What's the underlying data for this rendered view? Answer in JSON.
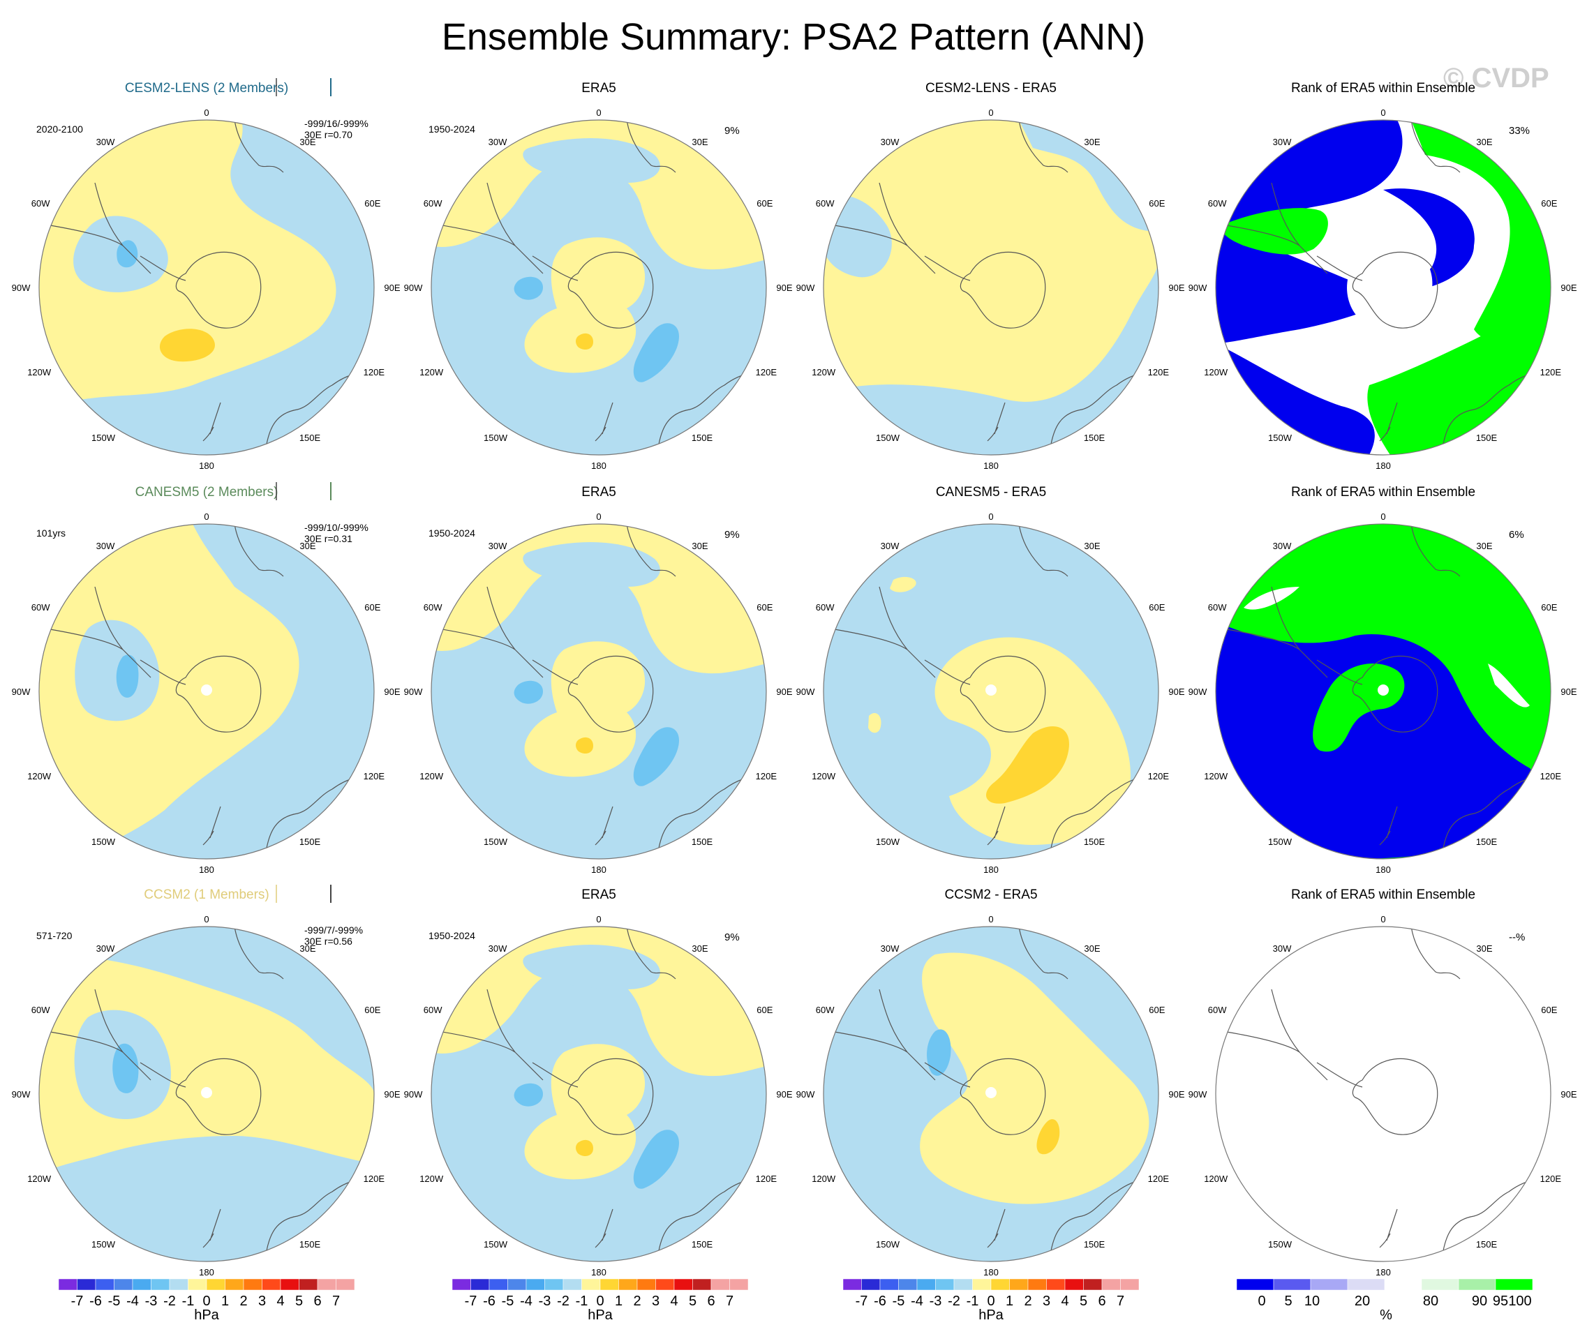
{
  "title": "Ensemble Summary: PSA2 Pattern (ANN)",
  "watermark": "© CVDP",
  "colors": {
    "neg7": "#7b2be0",
    "neg6": "#2a2ad6",
    "neg5": "#3c5ff0",
    "neg4": "#4d86ea",
    "neg3": "#4aaaf0",
    "neg2": "#6fc5f2",
    "neg1": "#b3ddf1",
    "pos1": "#fff59a",
    "pos2": "#ffd633",
    "pos3": "#ffa71a",
    "pos4": "#ff7a10",
    "pos5": "#ff4a1a",
    "pos6": "#e81010",
    "pos7": "#c02020",
    "pos8": "#f4a3a3",
    "rank_blue": "#0000ee",
    "rank_green": "#00ff00",
    "model1": "#1f6a8a",
    "model2": "#5a8a5a",
    "model3": "#e0cc7a"
  },
  "lon_labels": {
    "top": "0",
    "bottom": "180",
    "left": "90W",
    "right": "90E",
    "tl30": "30W",
    "tl60": "60W",
    "tr30": "30E",
    "tr60": "60E",
    "bl120": "120W",
    "bl150": "150W",
    "br120": "120E",
    "br150": "150E"
  },
  "rows": [
    {
      "model": {
        "title": "CESM2-LENS (2 Members)",
        "title_color": "model1",
        "period": "2020-2100",
        "stats": "-999/16/-999%",
        "corr": "30E r=0.70",
        "bar_color": "model1"
      },
      "obs": {
        "title": "ERA5",
        "period": "1950-2024",
        "pct": "9%"
      },
      "diff": {
        "title": "CESM2-LENS - ERA5"
      },
      "rank": {
        "title": "Rank of ERA5 within Ensemble",
        "pct": "33%"
      }
    },
    {
      "model": {
        "title": "CANESM5 (2 Members)",
        "title_color": "model2",
        "period": "101yrs",
        "stats": "-999/10/-999%",
        "corr": "30E r=0.31",
        "bar_color": "model2"
      },
      "obs": {
        "title": "ERA5",
        "period": "1950-2024",
        "pct": "9%"
      },
      "diff": {
        "title": "CANESM5 - ERA5"
      },
      "rank": {
        "title": "Rank of ERA5 within Ensemble",
        "pct": "6%"
      }
    },
    {
      "model": {
        "title": "CCSM2 (1 Members)",
        "title_color": "model3",
        "period": "571-720",
        "stats": "-999/7/-999%",
        "corr": "30E r=0.56",
        "bar_color": "model3"
      },
      "obs": {
        "title": "ERA5",
        "period": "1950-2024",
        "pct": "9%"
      },
      "diff": {
        "title": "CCSM2 - ERA5"
      },
      "rank": {
        "title": "Rank of ERA5 within Ensemble",
        "pct": "--%"
      }
    }
  ],
  "colorbars": {
    "hpa": {
      "labels": [
        "-7",
        "-6",
        "-5",
        "-4",
        "-3",
        "-2",
        "-1",
        "0",
        "1",
        "2",
        "3",
        "4",
        "5",
        "6",
        "7"
      ],
      "colors": [
        "neg7",
        "neg6",
        "neg5",
        "neg4",
        "neg3",
        "neg2",
        "neg1",
        "pos1",
        "pos2",
        "pos3",
        "pos4",
        "pos5",
        "pos6",
        "pos7",
        "pos8",
        "pos8"
      ],
      "unit": "hPa"
    },
    "rank": {
      "labels": [
        "0",
        "5",
        "10",
        "20",
        "80",
        "90",
        "95",
        "100"
      ],
      "colors": [
        "#0000ee",
        "#5a5af0",
        "#a8a8f5",
        "#dcdcf5",
        "#ffffff",
        "#e0f8e0",
        "#a8f0a8",
        "#00ff00"
      ],
      "unit": "%"
    }
  }
}
